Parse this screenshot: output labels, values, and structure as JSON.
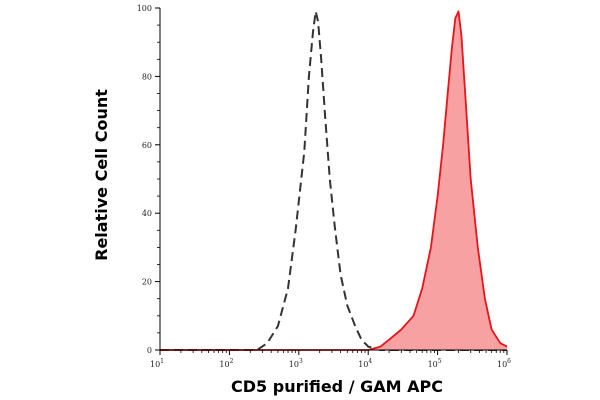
{
  "chart_data": {
    "type": "area",
    "xlabel": "CD5 purified / GAM APC",
    "ylabel": "Relative Cell Count",
    "x_scale": "log",
    "xlim": [
      10,
      1000000
    ],
    "ylim": [
      0,
      100
    ],
    "x_ticks": [
      {
        "value": 10,
        "base": "10",
        "exp": "1"
      },
      {
        "value": 100,
        "base": "10",
        "exp": "2"
      },
      {
        "value": 1000,
        "base": "10",
        "exp": "3"
      },
      {
        "value": 10000,
        "base": "10",
        "exp": "4"
      },
      {
        "value": 100000,
        "base": "10",
        "exp": "5"
      },
      {
        "value": 1000000,
        "base": "10",
        "exp": "6"
      }
    ],
    "y_ticks": [
      "0",
      "20",
      "40",
      "60",
      "80",
      "100"
    ],
    "grid": false,
    "legend": "none",
    "series": [
      {
        "style": "dashed",
        "color": "#333333",
        "fill": "none",
        "x": [
          10,
          100,
          250,
          350,
          500,
          700,
          900,
          1200,
          1400,
          1600,
          1750,
          1900,
          2100,
          2400,
          2800,
          3300,
          4000,
          5000,
          6500,
          8000,
          10000,
          15000,
          1000000
        ],
        "y": [
          0,
          0,
          0,
          2,
          7,
          18,
          35,
          58,
          80,
          93,
          99,
          96,
          85,
          68,
          50,
          36,
          22,
          13,
          7,
          3,
          1,
          0,
          0
        ]
      },
      {
        "style": "solid",
        "color": "#e8141a",
        "fill": "#f7a1a3",
        "x": [
          10,
          10000,
          15000,
          20000,
          30000,
          45000,
          60000,
          80000,
          100000,
          120000,
          140000,
          160000,
          180000,
          200000,
          220000,
          250000,
          300000,
          380000,
          480000,
          600000,
          800000,
          1000000
        ],
        "y": [
          0,
          0,
          1,
          3,
          6,
          10,
          18,
          30,
          45,
          60,
          75,
          88,
          97,
          99,
          92,
          75,
          50,
          30,
          15,
          6,
          2,
          1
        ]
      }
    ]
  }
}
